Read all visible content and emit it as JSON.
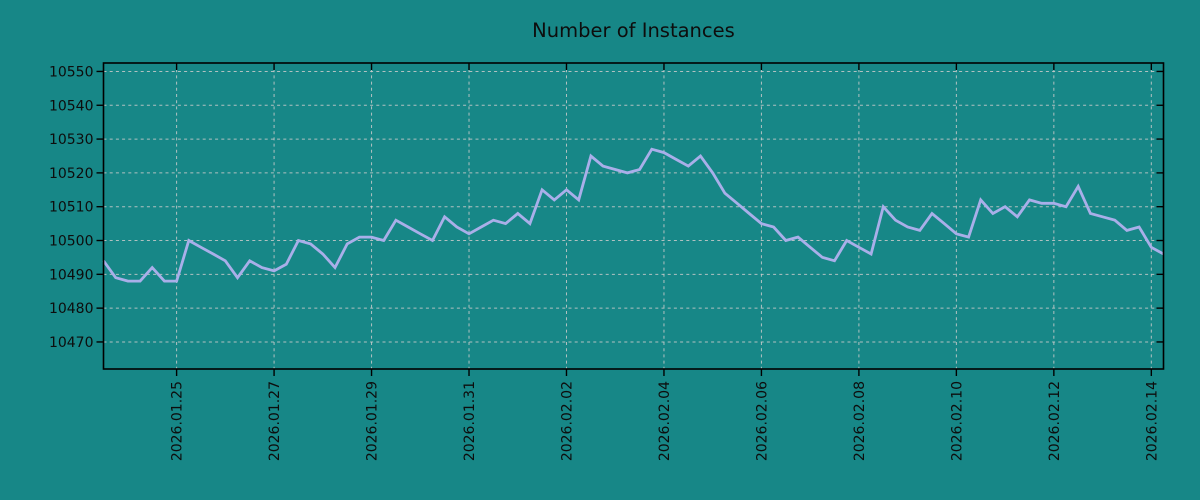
{
  "title": "Number of Instances",
  "colors": {
    "background": "#178787",
    "line": "#a9afe9",
    "grid": "#cccccc",
    "spine": "#000000",
    "text": "#0d0d0d"
  },
  "chart_data": {
    "type": "line",
    "title": "Number of Instances",
    "xlabel": "",
    "ylabel": "",
    "x_start": "2026.01.23 12:00",
    "x_end": "2026.02.14 06:00",
    "x_interval_hours": 6,
    "x_tick_labels": [
      "2026.01.25",
      "2026.01.27",
      "2026.01.29",
      "2026.01.31",
      "2026.02.02",
      "2026.02.04",
      "2026.02.06",
      "2026.02.08",
      "2026.02.10",
      "2026.02.12",
      "2026.02.14"
    ],
    "x_tick_indices": [
      6,
      14,
      22,
      30,
      38,
      46,
      54,
      62,
      70,
      78,
      86
    ],
    "y_ticks": [
      10470,
      10480,
      10490,
      10500,
      10510,
      10520,
      10530,
      10540,
      10550
    ],
    "ylim": [
      10462,
      10552.5
    ],
    "grid": "both-dashed",
    "legend": "none",
    "values": [
      10494,
      10489,
      10488,
      10488,
      10492,
      10488,
      10488,
      10500,
      10498,
      10496,
      10494,
      10489,
      10494,
      10492,
      10491,
      10493,
      10500,
      10499,
      10496,
      10492,
      10499,
      10501,
      10501,
      10500,
      10506,
      10504,
      10502,
      10500,
      10507,
      10504,
      10502,
      10504,
      10506,
      10505,
      10508,
      10505,
      10515,
      10512,
      10515,
      10512,
      10525,
      10522,
      10521,
      10520,
      10521,
      10527,
      10526,
      10524,
      10522,
      10525,
      10520,
      10514,
      10511,
      10508,
      10505,
      10504,
      10500,
      10501,
      10498,
      10495,
      10494,
      10500,
      10498,
      10496,
      10510,
      10506,
      10504,
      10503,
      10508,
      10505,
      10502,
      10501,
      10512,
      10508,
      10510,
      10507,
      10512,
      10511,
      10511,
      10510,
      10516,
      10508,
      10507,
      10506,
      10503,
      10504,
      10498,
      10496
    ]
  }
}
